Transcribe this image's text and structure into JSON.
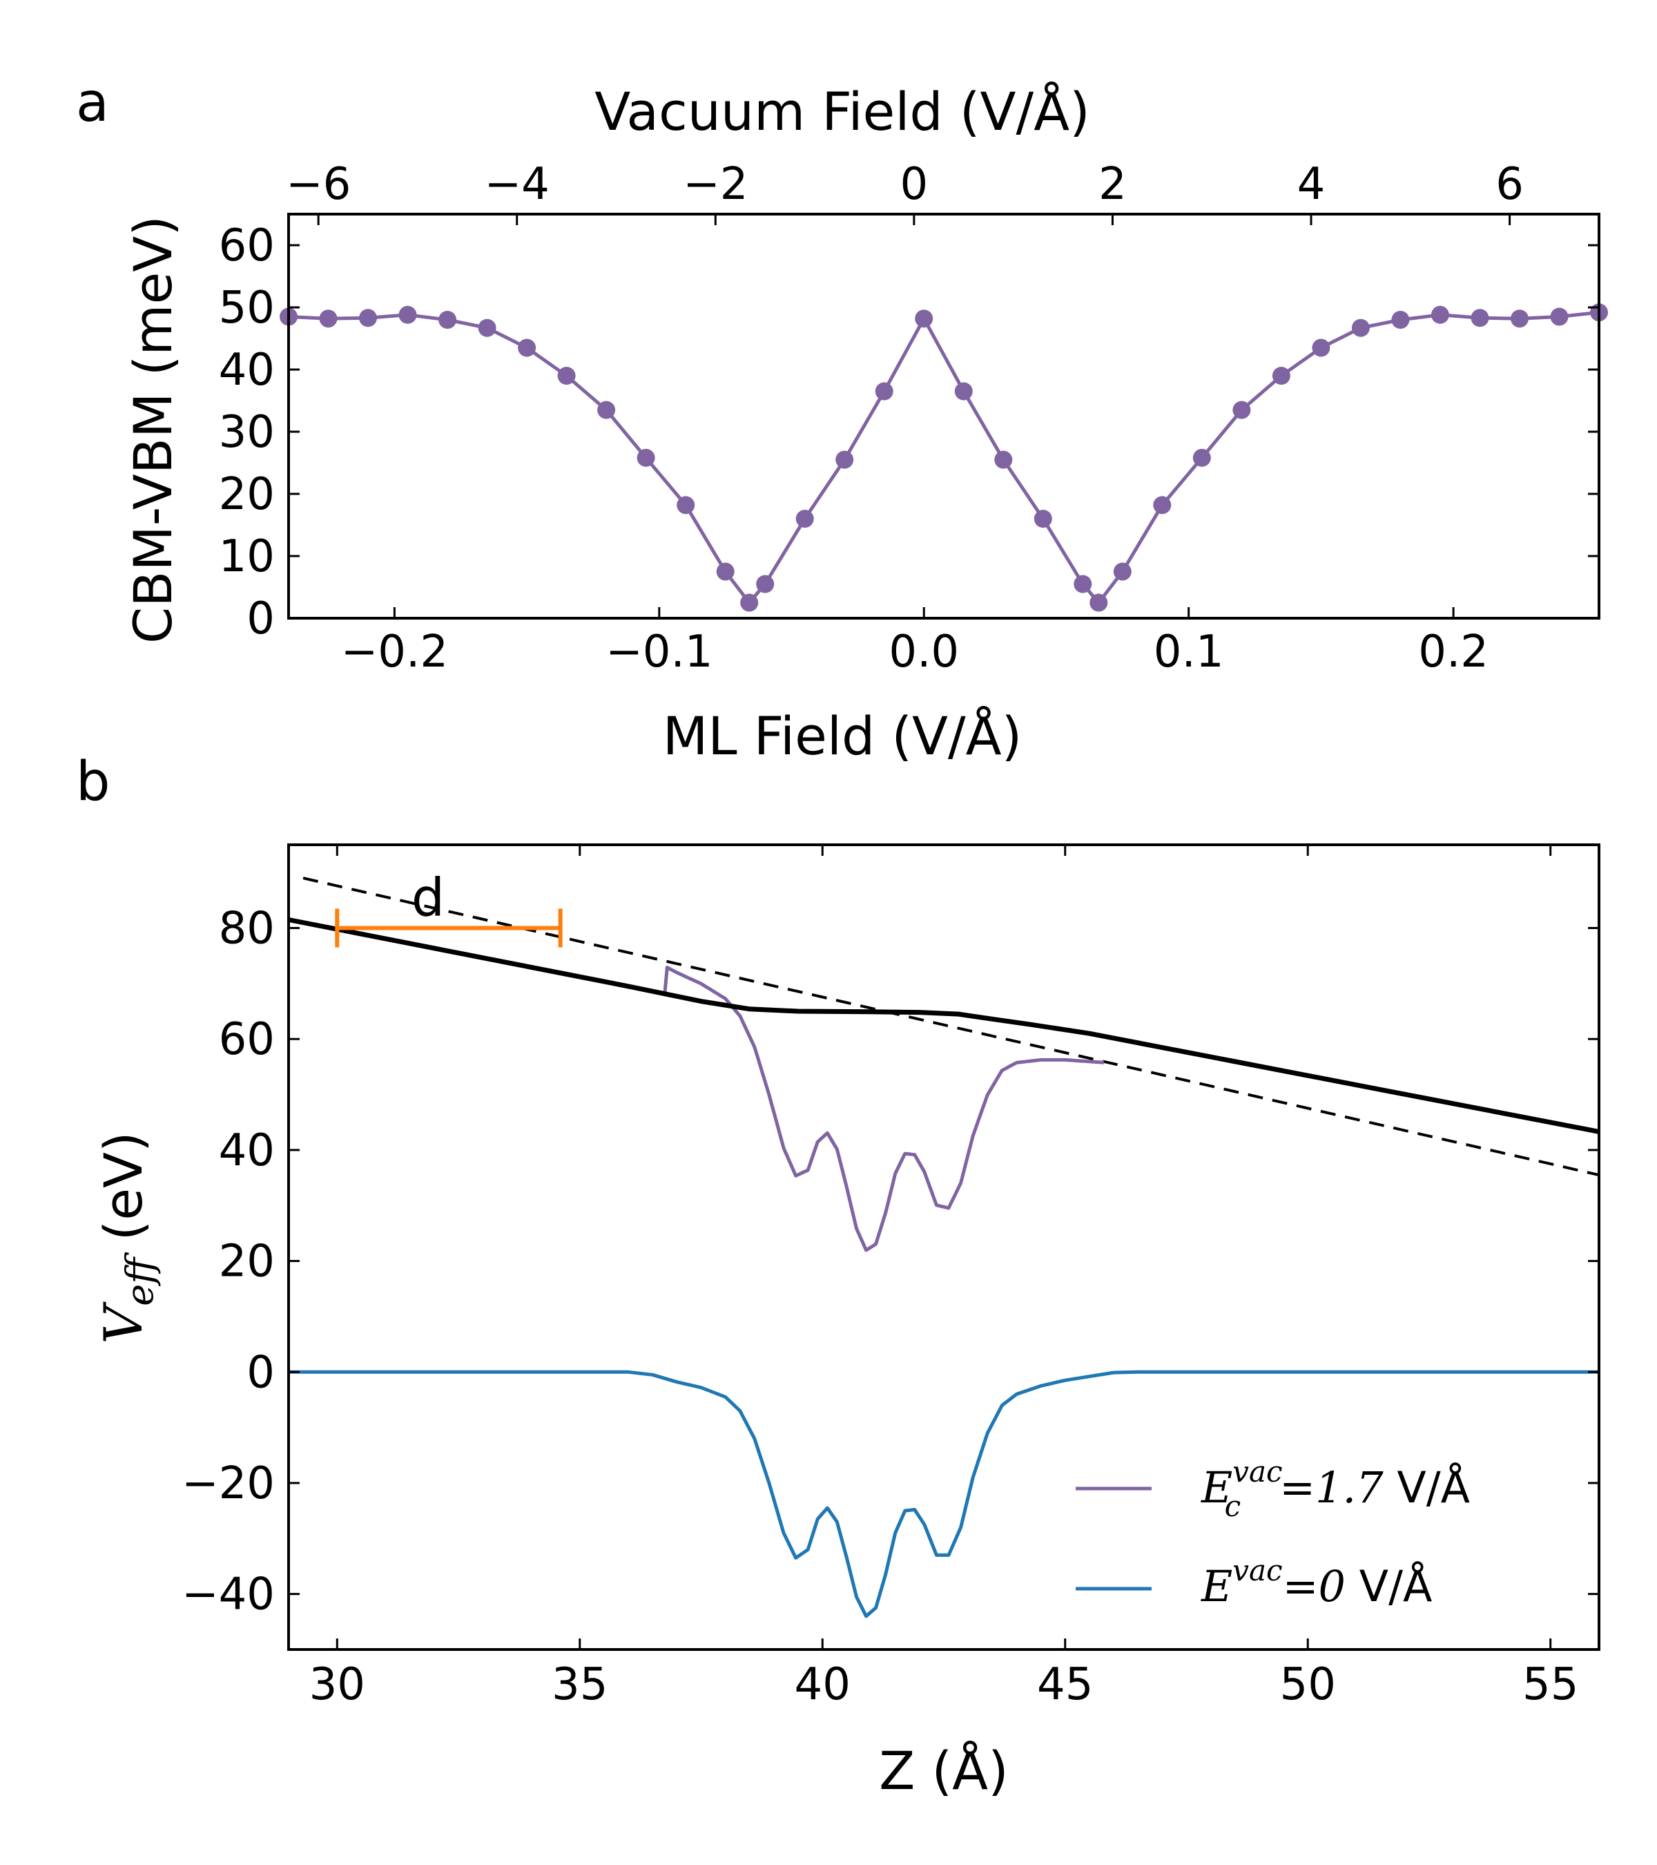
{
  "chart_data": [
    {
      "panel_label": "a",
      "type": "line",
      "xlabel_bottom": "ML Field (V/Å)",
      "xlabel_top": "Vacuum Field (V/Å)",
      "ylabel": "CBM-VBM (meV)",
      "xlim": [
        -0.24,
        0.255
      ],
      "ylim": [
        0,
        65
      ],
      "top_xlim": [
        -6.3,
        6.9
      ],
      "xticks": [
        -0.2,
        -0.1,
        0.0,
        0.1,
        0.2
      ],
      "xtick_labels": [
        "−0.2",
        "−0.1",
        "0.0",
        "0.1",
        "0.2"
      ],
      "top_xticks": [
        -6,
        -4,
        -2,
        0,
        2,
        4,
        6
      ],
      "top_xtick_labels": [
        "−6",
        "−4",
        "−2",
        "0",
        "2",
        "4",
        "6"
      ],
      "yticks": [
        0,
        10,
        20,
        30,
        40,
        50,
        60
      ],
      "ytick_labels": [
        "0",
        "10",
        "20",
        "30",
        "40",
        "50",
        "60"
      ],
      "series": [
        {
          "name": "CBM-VBM",
          "color": "#8064a2",
          "x": [
            -0.24,
            -0.225,
            -0.21,
            -0.195,
            -0.18,
            -0.165,
            -0.15,
            -0.135,
            -0.12,
            -0.105,
            -0.09,
            -0.075,
            -0.066,
            -0.06,
            -0.045,
            -0.03,
            -0.015,
            0.0,
            0.015,
            0.03,
            0.045,
            0.06,
            0.066,
            0.075,
            0.09,
            0.105,
            0.12,
            0.135,
            0.15,
            0.165,
            0.18,
            0.195,
            0.21,
            0.225,
            0.24,
            0.255
          ],
          "y": [
            48.5,
            48.2,
            48.3,
            48.8,
            48.0,
            46.7,
            43.5,
            39.0,
            33.5,
            25.8,
            18.2,
            7.5,
            2.5,
            5.5,
            16.0,
            25.5,
            36.5,
            48.2,
            36.5,
            25.5,
            16.0,
            5.5,
            2.5,
            7.5,
            18.2,
            25.8,
            33.5,
            39.0,
            43.5,
            46.7,
            48.0,
            48.8,
            48.3,
            48.2,
            48.5,
            49.2
          ]
        }
      ]
    },
    {
      "panel_label": "b",
      "type": "line",
      "xlabel": "Z (Å)",
      "ylabel": "V",
      "ylabel_sub": "eff",
      "ylabel_unit": " (eV)",
      "xlim": [
        29,
        56
      ],
      "ylim": [
        -50,
        95
      ],
      "xticks": [
        30,
        35,
        40,
        45,
        50,
        55
      ],
      "xtick_labels": [
        "30",
        "35",
        "40",
        "45",
        "50",
        "55"
      ],
      "yticks": [
        -40,
        -20,
        0,
        20,
        40,
        60,
        80
      ],
      "ytick_labels": [
        "−40",
        "−20",
        "0",
        "20",
        "40",
        "60",
        "80"
      ],
      "well_profile": {
        "z": [
          29,
          35.0,
          36.0,
          36.5,
          37.0,
          37.5,
          38.0,
          38.3,
          38.6,
          38.9,
          39.2,
          39.45,
          39.7,
          39.9,
          40.1,
          40.3,
          40.5,
          40.7,
          40.9,
          41.1,
          41.3,
          41.5,
          41.7,
          41.9,
          42.1,
          42.35,
          42.6,
          42.85,
          43.1,
          43.4,
          43.7,
          44.0,
          44.5,
          45.0,
          45.5,
          46.0,
          46.5,
          47.0,
          56
        ],
        "v": [
          0,
          0,
          0,
          -0.5,
          -1.8,
          -2.8,
          -4.5,
          -7.0,
          -12.0,
          -20.0,
          -29.0,
          -33.5,
          -32.0,
          -26.5,
          -24.5,
          -27.0,
          -33.5,
          -40.5,
          -44.0,
          -42.5,
          -36.5,
          -29.0,
          -25.0,
          -24.8,
          -27.5,
          -33.0,
          -33.0,
          -28.0,
          -19.0,
          -11.0,
          -6.0,
          -4.0,
          -2.5,
          -1.5,
          -0.8,
          -0.1,
          0,
          0,
          0
        ]
      },
      "series": [
        {
          "name": "purple",
          "color": "#8064a2",
          "legend_main": "E",
          "legend_sub": "c",
          "legend_sup": "vac",
          "legend_rhs": "=1.7",
          "legend_unit": " V/Å",
          "field_start": 36.2,
          "field_end": 45.8,
          "field_slope": -0.97
        },
        {
          "name": "blue",
          "color": "#1f77b4",
          "legend_main": "E",
          "legend_sup": "vac",
          "legend_rhs": "=0",
          "legend_unit": " V/Å",
          "field_slope": 0
        }
      ],
      "solid_line": {
        "color": "#000000",
        "z": [
          29.0,
          36.0,
          37.5,
          38.5,
          39.5,
          41.0,
          42.0,
          42.8,
          43.5,
          44.3,
          45.5,
          56.0
        ],
        "v": [
          81.5,
          69.5,
          66.8,
          65.4,
          65.0,
          64.9,
          64.8,
          64.5,
          63.6,
          62.6,
          61.0,
          43.3
        ]
      },
      "dashed_line": {
        "color": "#000000",
        "z": [
          29.3,
          56.0
        ],
        "v": [
          89.0,
          35.5
        ]
      },
      "annotation": {
        "label": "d",
        "color": "#ff7f0e",
        "z_start": 30.0,
        "z_end": 34.6,
        "v": 80.0
      }
    }
  ]
}
